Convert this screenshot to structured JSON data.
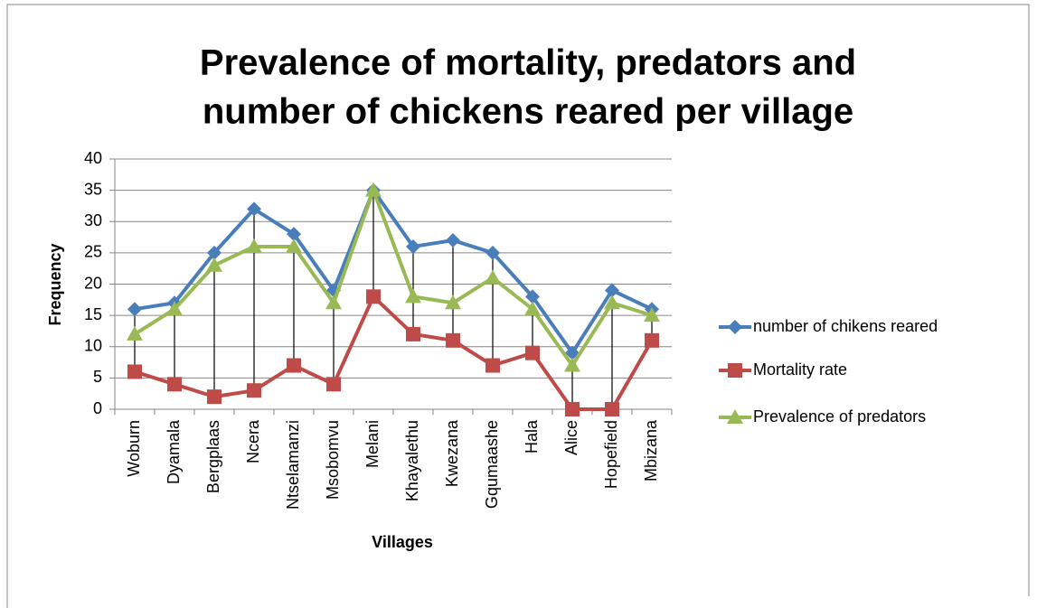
{
  "chart_data": {
    "type": "line",
    "title": [
      "Prevalence of mortality, predators and",
      "number of chickens reared per village"
    ],
    "xlabel": "Villages",
    "ylabel": "Frequency",
    "categories": [
      "Woburn",
      "Dyamala",
      "Bergplaas",
      "Ncera",
      "Ntselamanzi",
      "Msobomvu",
      "Melani",
      "Khayalethu",
      "Kwezana",
      "Gqumaashe",
      "Hala",
      "Alice",
      "Hopefield",
      "Mbizana"
    ],
    "series": [
      {
        "name": "number of chikens reared",
        "color": "#4a7ebb",
        "marker": "diamond",
        "values": [
          16,
          17,
          25,
          32,
          28,
          19,
          35,
          26,
          27,
          25,
          18,
          9,
          19,
          16
        ]
      },
      {
        "name": "Mortality rate",
        "color": "#be4b48",
        "marker": "square",
        "values": [
          6,
          4,
          2,
          3,
          7,
          4,
          18,
          12,
          11,
          7,
          9,
          0,
          0,
          11
        ]
      },
      {
        "name": "Prevalence of predators",
        "color": "#98b954",
        "marker": "triangle",
        "values": [
          12,
          16,
          23,
          26,
          26,
          17,
          35,
          18,
          17,
          21,
          16,
          7,
          17,
          15
        ]
      }
    ],
    "ylim": [
      0,
      40
    ],
    "yticks": [
      0,
      5,
      10,
      15,
      20,
      25,
      30,
      35,
      40
    ],
    "grid": true,
    "high_low_lines": true,
    "legend": "right"
  }
}
